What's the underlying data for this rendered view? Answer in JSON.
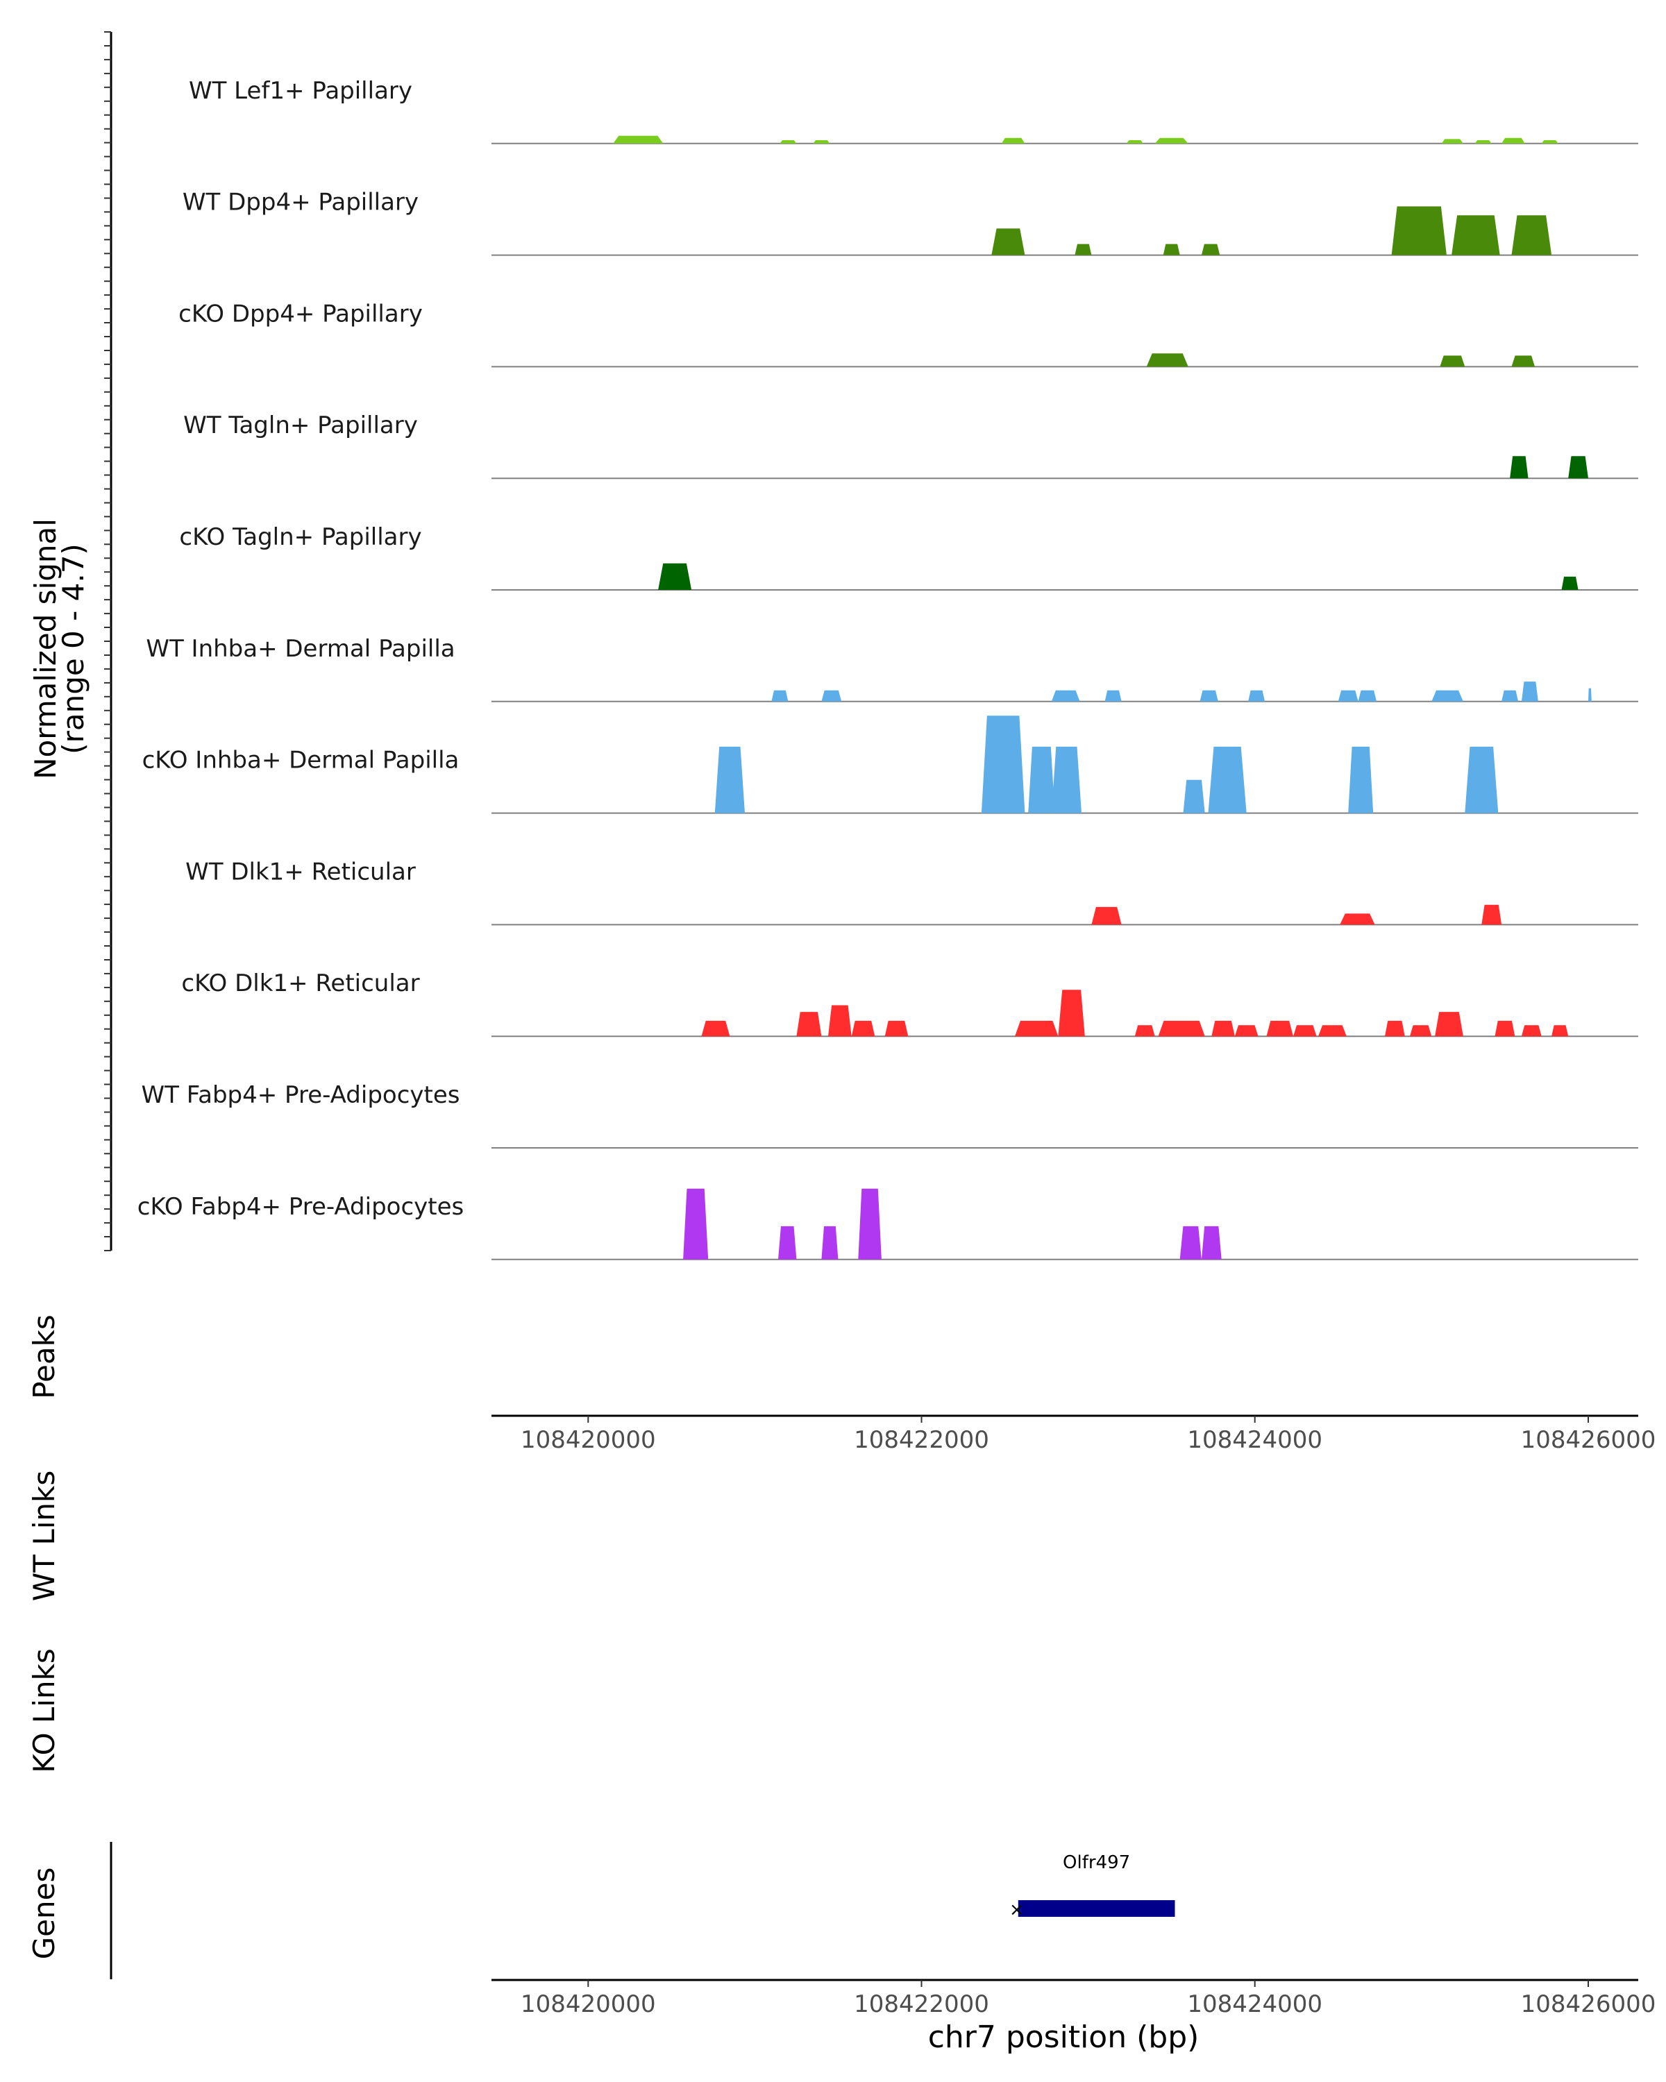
{
  "chart_data": {
    "type": "area",
    "chromosome": "chr7",
    "x_range": [
      108419420,
      108426300
    ],
    "y_range": [
      0,
      4.7
    ],
    "y_title_line1": "Normalized signal",
    "y_title_line2": "(range 0 - 4.7)",
    "x_title": "chr7 position (bp)",
    "x_ticks": [
      108420000,
      108422000,
      108424000,
      108426000
    ],
    "x_tick_labels": [
      "108420000",
      "108422000",
      "108424000",
      "108426000"
    ],
    "baseline_color": "#808080",
    "tracks": [
      {
        "name": "WT Lef1+ Papillary",
        "color": "#7ACC1F",
        "peaks": [
          [
            108420150,
            108420450,
            0.35
          ],
          [
            108421150,
            108421250,
            0.15
          ],
          [
            108421350,
            108421450,
            0.15
          ],
          [
            108422480,
            108422620,
            0.25
          ],
          [
            108423230,
            108423330,
            0.15
          ],
          [
            108423400,
            108423600,
            0.25
          ],
          [
            108425120,
            108425250,
            0.2
          ],
          [
            108425320,
            108425420,
            0.15
          ],
          [
            108425480,
            108425620,
            0.25
          ],
          [
            108425720,
            108425820,
            0.15
          ]
        ]
      },
      {
        "name": "WT Dpp4+ Papillary",
        "color": "#4A8A0A",
        "peaks": [
          [
            108422420,
            108422620,
            1.2
          ],
          [
            108422920,
            108423020,
            0.5
          ],
          [
            108423450,
            108423550,
            0.5
          ],
          [
            108423680,
            108423790,
            0.5
          ],
          [
            108424820,
            108425150,
            2.2
          ],
          [
            108425180,
            108425470,
            1.8
          ],
          [
            108425540,
            108425780,
            1.8
          ]
        ]
      },
      {
        "name": "cKO Dpp4+ Papillary",
        "color": "#4A8A0A",
        "peaks": [
          [
            108423350,
            108423600,
            0.6
          ],
          [
            108425110,
            108425260,
            0.5
          ],
          [
            108425540,
            108425680,
            0.5
          ]
        ]
      },
      {
        "name": "WT Tagln+ Papillary",
        "color": "#006400",
        "peaks": [
          [
            108425530,
            108425640,
            1.0
          ],
          [
            108425880,
            108426000,
            1.0
          ]
        ]
      },
      {
        "name": "cKO Tagln+ Papillary",
        "color": "#006400",
        "peaks": [
          [
            108420420,
            108420620,
            1.2
          ],
          [
            108425840,
            108425940,
            0.6
          ]
        ]
      },
      {
        "name": "WT Inhba+ Dermal Papilla",
        "color": "#5DADE8",
        "peaks": [
          [
            108421100,
            108421200,
            0.5
          ],
          [
            108421400,
            108421520,
            0.5
          ],
          [
            108422780,
            108422950,
            0.5
          ],
          [
            108423100,
            108423200,
            0.5
          ],
          [
            108423670,
            108423780,
            0.5
          ],
          [
            108423960,
            108424060,
            0.5
          ],
          [
            108424500,
            108424620,
            0.5
          ],
          [
            108424620,
            108424730,
            0.5
          ],
          [
            108425060,
            108425250,
            0.5
          ],
          [
            108425480,
            108425580,
            0.5
          ],
          [
            108425600,
            108425700,
            0.9
          ],
          [
            108426000,
            108426020,
            0.6
          ]
        ]
      },
      {
        "name": "cKO Inhba+ Dermal Papilla",
        "color": "#5DADE8",
        "peaks": [
          [
            108420760,
            108420940,
            3.0
          ],
          [
            108422360,
            108422620,
            4.4
          ],
          [
            108422640,
            108422800,
            3.0
          ],
          [
            108422780,
            108422960,
            3.0
          ],
          [
            108423570,
            108423700,
            1.5
          ],
          [
            108423720,
            108423950,
            3.0
          ],
          [
            108424560,
            108424710,
            3.0
          ],
          [
            108425260,
            108425460,
            3.0
          ]
        ]
      },
      {
        "name": "WT Dlk1+ Reticular",
        "color": "#FF2D2D",
        "peaks": [
          [
            108423020,
            108423200,
            0.8
          ],
          [
            108424510,
            108424720,
            0.5
          ],
          [
            108425360,
            108425480,
            0.9
          ]
        ]
      },
      {
        "name": "cKO Dlk1+ Reticular",
        "color": "#FF2D2D",
        "peaks": [
          [
            108420680,
            108420850,
            0.7
          ],
          [
            108421250,
            108421400,
            1.1
          ],
          [
            108421440,
            108421580,
            1.4
          ],
          [
            108421580,
            108421720,
            0.7
          ],
          [
            108421780,
            108421920,
            0.7
          ],
          [
            108422560,
            108422820,
            0.7
          ],
          [
            108422820,
            108422980,
            2.1
          ],
          [
            108423280,
            108423400,
            0.5
          ],
          [
            108423420,
            108423700,
            0.7
          ],
          [
            108423740,
            108423880,
            0.7
          ],
          [
            108423880,
            108424020,
            0.5
          ],
          [
            108424070,
            108424230,
            0.7
          ],
          [
            108424230,
            108424370,
            0.5
          ],
          [
            108424380,
            108424550,
            0.5
          ],
          [
            108424780,
            108424900,
            0.7
          ],
          [
            108424930,
            108425060,
            0.5
          ],
          [
            108425080,
            108425250,
            1.1
          ],
          [
            108425440,
            108425560,
            0.7
          ],
          [
            108425600,
            108425720,
            0.5
          ],
          [
            108425780,
            108425880,
            0.5
          ]
        ]
      },
      {
        "name": "WT Fabp4+ Pre-Adipocytes",
        "color": "#B038F0",
        "peaks": []
      },
      {
        "name": "cKO Fabp4+ Pre-Adipocytes",
        "color": "#B038F0",
        "peaks": [
          [
            108420570,
            108420720,
            3.2
          ],
          [
            108421140,
            108421250,
            1.5
          ],
          [
            108421400,
            108421500,
            1.5
          ],
          [
            108421620,
            108421760,
            3.2
          ],
          [
            108423550,
            108423680,
            1.5
          ],
          [
            108423680,
            108423800,
            1.5
          ]
        ]
      }
    ],
    "peaks_track": {
      "title": "Peaks",
      "regions": []
    },
    "links_tracks": [
      {
        "title": "WT Links",
        "links": []
      },
      {
        "title": "KO Links",
        "links": []
      }
    ],
    "genes_track": {
      "title": "Genes",
      "color": "#00008B",
      "genes": [
        {
          "name": "Olfr497",
          "start": 108422580,
          "end": 108423520,
          "strand": "-"
        }
      ]
    }
  }
}
